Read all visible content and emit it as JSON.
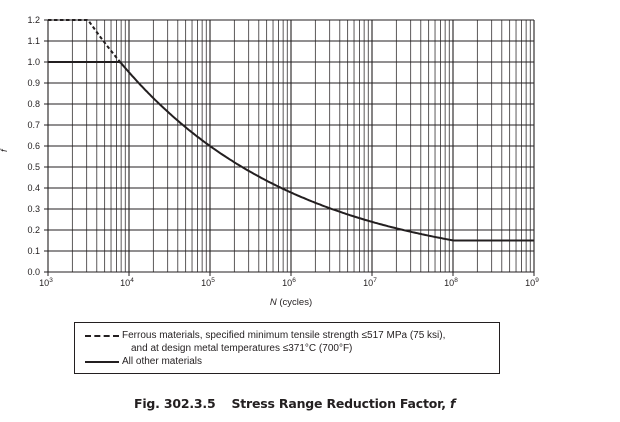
{
  "chart_data": {
    "type": "line",
    "title": "Fig. 302.3.5    Stress Range Reduction Factor, f",
    "caption": {
      "number": "Fig. 302.3.5",
      "text": "Stress Range Reduction Factor, ",
      "symbol": "f"
    },
    "xlabel": "N (cycles)",
    "xlabel_var": "N",
    "xlabel_unit": " (cycles)",
    "ylabel": "f",
    "xscale": "log",
    "xlim": [
      1000,
      1000000000
    ],
    "ylim": [
      0.0,
      1.2
    ],
    "grid": true,
    "x_ticks": [
      {
        "value": 1000,
        "base": "10",
        "exp": "3"
      },
      {
        "value": 10000,
        "base": "10",
        "exp": "4"
      },
      {
        "value": 100000,
        "base": "10",
        "exp": "5"
      },
      {
        "value": 1000000,
        "base": "10",
        "exp": "6"
      },
      {
        "value": 10000000,
        "base": "10",
        "exp": "7"
      },
      {
        "value": 100000000,
        "base": "10",
        "exp": "8"
      },
      {
        "value": 1000000000,
        "base": "10",
        "exp": "9"
      }
    ],
    "y_ticks": [
      "0.0",
      "0.1",
      "0.2",
      "0.3",
      "0.4",
      "0.5",
      "0.6",
      "0.7",
      "0.8",
      "0.9",
      "1.0",
      "1.1",
      "1.2"
    ],
    "series": [
      {
        "name": "Ferrous materials, specified minimum tensile strength ≤517 MPa (75 ksi), and at design metal temperatures ≤371°C (700°F)",
        "style": "dashed",
        "color": "#231f20",
        "x": [
          1000,
          3125,
          5000,
          7776
        ],
        "y": [
          1.2,
          1.2,
          1.1,
          1.0
        ]
      },
      {
        "name": "All other materials",
        "style": "solid",
        "color": "#231f20",
        "x": [
          1000,
          7776,
          20000,
          50000,
          100000,
          300000,
          1000000,
          3000000,
          10000000,
          30000000,
          100000000,
          1000000000
        ],
        "y": [
          1.0,
          1.0,
          0.83,
          0.69,
          0.6,
          0.48,
          0.38,
          0.3,
          0.24,
          0.19,
          0.15,
          0.15
        ]
      }
    ],
    "legend": {
      "position": "bottom",
      "items": [
        {
          "line1": "Ferrous materials, specified minimum tensile strength ≤517 MPa (75 ksi),",
          "line2": "and at design metal temperatures ≤371°C (700°F)",
          "style": "dashed"
        },
        {
          "line1": "All other materials",
          "style": "solid"
        }
      ]
    }
  }
}
